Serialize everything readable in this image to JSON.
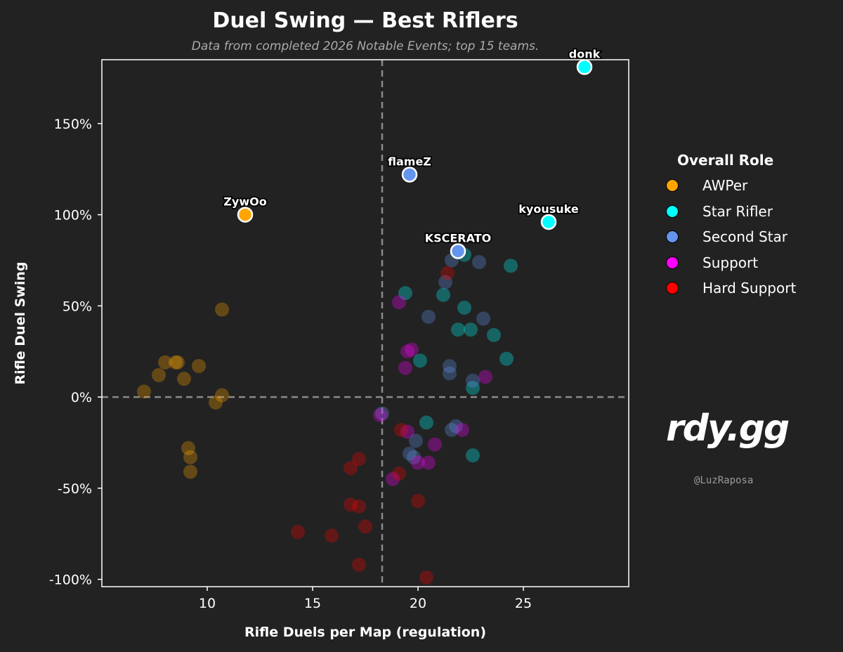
{
  "chart_data": {
    "type": "scatter",
    "title": "Duel Swing — Best Riflers",
    "subtitle": "Data from completed 2026 Notable Events; top 15 teams.",
    "xlabel": "Rifle Duels per Map (regulation)",
    "ylabel": "Rifle Duel Swing",
    "xlim": [
      5,
      30
    ],
    "ylim": [
      -104,
      185
    ],
    "x_ticks": [
      10,
      15,
      20,
      25
    ],
    "y_ticks": [
      -100,
      -50,
      0,
      50,
      100,
      150
    ],
    "y_tick_format": "percent",
    "reference_lines": {
      "x": 18.3,
      "y": 0
    },
    "grid": false,
    "legend": {
      "title": "Overall Role",
      "placement": "right",
      "entries": [
        {
          "name": "AWPer",
          "color": "#FFA500"
        },
        {
          "name": "Star Rifler",
          "color": "#00FFFF"
        },
        {
          "name": "Second Star",
          "color": "#6495ED"
        },
        {
          "name": "Support",
          "color": "#FF00FF"
        },
        {
          "name": "Hard Support",
          "color": "#FF0000"
        }
      ]
    },
    "series": [
      {
        "name": "AWPer",
        "color": "#FFA500",
        "points": [
          {
            "x": 11.8,
            "y": 100,
            "label": "ZywOo"
          },
          {
            "x": 10.7,
            "y": 48
          },
          {
            "x": 7.0,
            "y": 3
          },
          {
            "x": 7.7,
            "y": 12
          },
          {
            "x": 8.0,
            "y": 19
          },
          {
            "x": 8.5,
            "y": 19
          },
          {
            "x": 8.6,
            "y": 19
          },
          {
            "x": 8.9,
            "y": 10
          },
          {
            "x": 9.6,
            "y": 17
          },
          {
            "x": 10.4,
            "y": -3
          },
          {
            "x": 10.7,
            "y": 1
          },
          {
            "x": 9.1,
            "y": -28
          },
          {
            "x": 9.2,
            "y": -33
          },
          {
            "x": 9.2,
            "y": -41
          }
        ]
      },
      {
        "name": "Star Rifler",
        "color": "#00FFFF",
        "points": [
          {
            "x": 27.9,
            "y": 181,
            "label": "donk"
          },
          {
            "x": 26.2,
            "y": 96,
            "label": "kyousuke"
          },
          {
            "x": 24.4,
            "y": 72
          },
          {
            "x": 22.2,
            "y": 78
          },
          {
            "x": 19.4,
            "y": 57
          },
          {
            "x": 21.2,
            "y": 56
          },
          {
            "x": 22.2,
            "y": 49
          },
          {
            "x": 21.9,
            "y": 37
          },
          {
            "x": 22.5,
            "y": 37
          },
          {
            "x": 23.6,
            "y": 34
          },
          {
            "x": 20.1,
            "y": 20
          },
          {
            "x": 24.2,
            "y": 21
          },
          {
            "x": 22.6,
            "y": 5
          },
          {
            "x": 20.4,
            "y": -14
          },
          {
            "x": 22.6,
            "y": -32
          }
        ]
      },
      {
        "name": "Second Star",
        "color": "#6495ED",
        "points": [
          {
            "x": 19.6,
            "y": 122,
            "label": "flameZ"
          },
          {
            "x": 21.9,
            "y": 80,
            "label": "KSCERATO"
          },
          {
            "x": 21.6,
            "y": 75
          },
          {
            "x": 22.9,
            "y": 74
          },
          {
            "x": 21.3,
            "y": 63
          },
          {
            "x": 20.5,
            "y": 44
          },
          {
            "x": 23.1,
            "y": 43
          },
          {
            "x": 21.5,
            "y": 17
          },
          {
            "x": 21.5,
            "y": 13
          },
          {
            "x": 22.6,
            "y": 9
          },
          {
            "x": 21.8,
            "y": -16
          },
          {
            "x": 21.6,
            "y": -18
          },
          {
            "x": 19.9,
            "y": -24
          },
          {
            "x": 19.6,
            "y": -31
          },
          {
            "x": 19.8,
            "y": -33
          },
          {
            "x": 18.3,
            "y": -9
          }
        ]
      },
      {
        "name": "Support",
        "color": "#FF00FF",
        "points": [
          {
            "x": 19.1,
            "y": 52
          },
          {
            "x": 19.5,
            "y": 25
          },
          {
            "x": 19.7,
            "y": 26
          },
          {
            "x": 19.4,
            "y": 16
          },
          {
            "x": 23.2,
            "y": 11
          },
          {
            "x": 18.2,
            "y": -10
          },
          {
            "x": 19.5,
            "y": -19
          },
          {
            "x": 22.1,
            "y": -18
          },
          {
            "x": 20.8,
            "y": -26
          },
          {
            "x": 20.0,
            "y": -36
          },
          {
            "x": 20.5,
            "y": -36
          },
          {
            "x": 18.8,
            "y": -45
          }
        ]
      },
      {
        "name": "Hard Support",
        "color": "#FF0000",
        "points": [
          {
            "x": 21.4,
            "y": 68
          },
          {
            "x": 19.2,
            "y": -18
          },
          {
            "x": 19.1,
            "y": -42
          },
          {
            "x": 17.2,
            "y": -34
          },
          {
            "x": 16.8,
            "y": -39
          },
          {
            "x": 16.8,
            "y": -59
          },
          {
            "x": 17.2,
            "y": -60
          },
          {
            "x": 20.0,
            "y": -57
          },
          {
            "x": 17.5,
            "y": -71
          },
          {
            "x": 14.3,
            "y": -74
          },
          {
            "x": 15.9,
            "y": -76
          },
          {
            "x": 17.2,
            "y": -92
          },
          {
            "x": 20.4,
            "y": -99
          }
        ]
      }
    ]
  },
  "branding": {
    "logo_text": "rdy.gg",
    "handle": "@LuzRaposa"
  }
}
